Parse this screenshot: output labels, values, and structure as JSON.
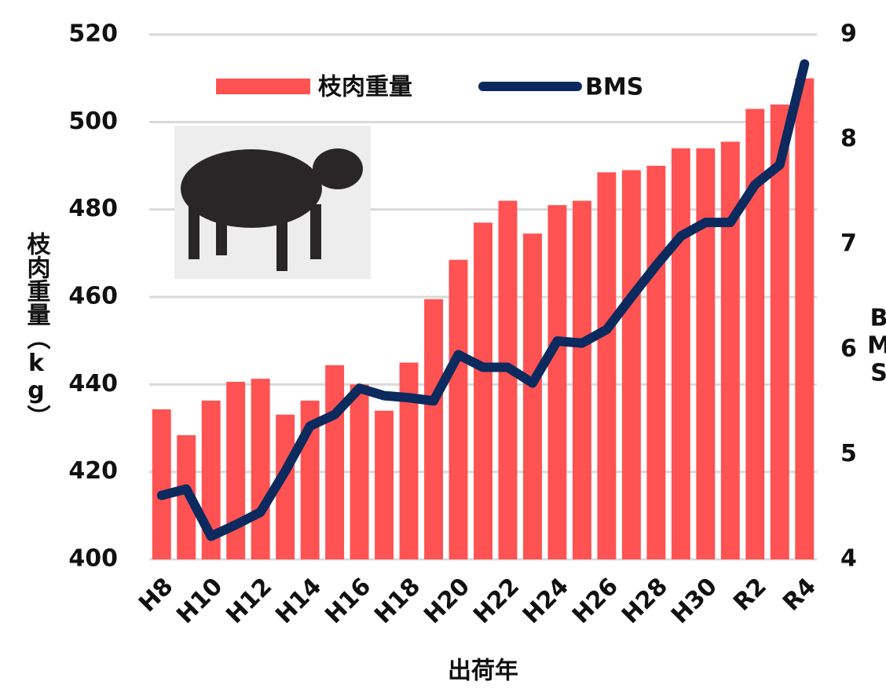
{
  "chart_data": {
    "type": "bar",
    "x_label": "出荷年",
    "y_label": "枝肉重量（kg）",
    "y2_label": "BMS",
    "categories": [
      "H8",
      null,
      "H10",
      null,
      "H12",
      null,
      "H14",
      null,
      "H16",
      null,
      "H18",
      null,
      "H20",
      null,
      "H22",
      null,
      "H24",
      null,
      "H26",
      null,
      "H28",
      null,
      "H30",
      null,
      "R2",
      null,
      "R4"
    ],
    "series": [
      {
        "name": "枝肉重量",
        "type": "bar",
        "color": "#ff5252",
        "values": [
          434.3,
          428.4,
          436.3,
          440.6,
          441.3,
          433.1,
          436.3,
          444.4,
          440,
          434,
          445,
          459.5,
          468.5,
          477,
          482,
          474.5,
          481,
          482,
          488.5,
          489,
          490,
          494,
          494,
          495.5,
          503,
          504,
          510
        ]
      },
      {
        "name": "BMS",
        "type": "line",
        "axis": "y2",
        "color": "#0d2a5e",
        "values": [
          4.61,
          4.67,
          4.22,
          4.33,
          4.45,
          4.84,
          5.27,
          5.38,
          5.63,
          5.56,
          5.54,
          5.51,
          5.95,
          5.83,
          5.83,
          5.68,
          6.08,
          6.06,
          6.19,
          6.5,
          6.8,
          7.08,
          7.21,
          7.21,
          7.57,
          7.76,
          8.72
        ]
      }
    ],
    "ylim": [
      400,
      520
    ],
    "yticks": [
      400,
      420,
      440,
      460,
      480,
      500,
      520
    ],
    "y2lim": [
      4,
      9
    ],
    "y2ticks": [
      4,
      5,
      6,
      7,
      8,
      9
    ],
    "grid": true,
    "legend": "top"
  }
}
